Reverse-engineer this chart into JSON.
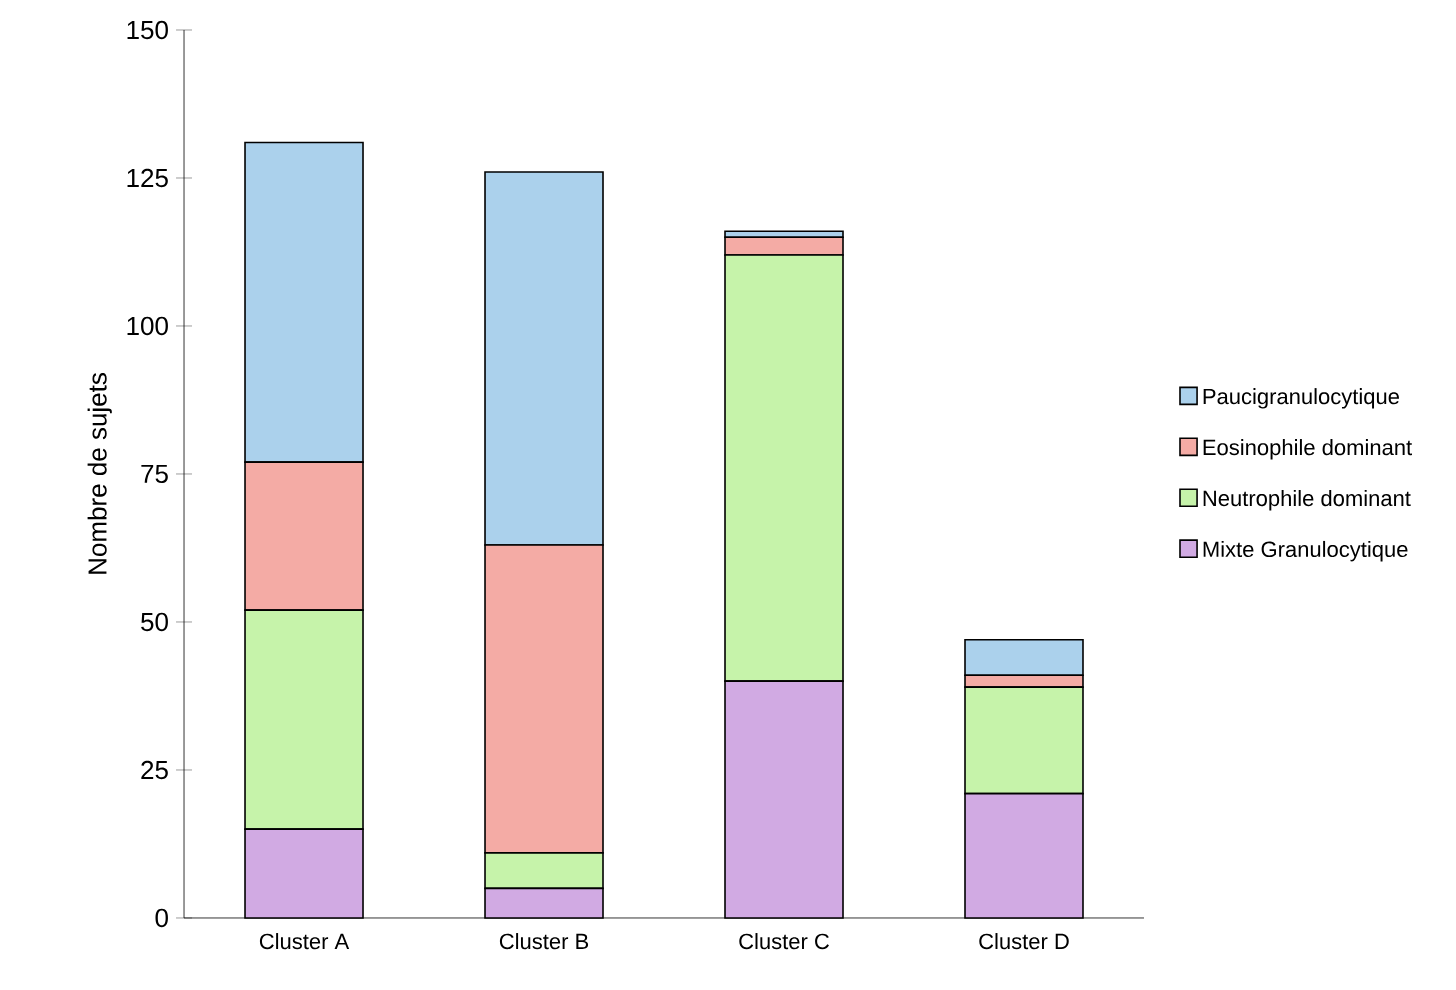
{
  "chart_data": {
    "type": "bar",
    "stacked": true,
    "ylabel": "Nombre de sujets",
    "categories": [
      "Cluster A",
      "Cluster B",
      "Cluster C",
      "Cluster D"
    ],
    "series": [
      {
        "name": "Mixte Granulocytique",
        "color": "#d1aae3",
        "values": [
          15,
          5,
          40,
          21
        ]
      },
      {
        "name": "Neutrophile dominant",
        "color": "#c6f3aa",
        "values": [
          37,
          6,
          72,
          18
        ]
      },
      {
        "name": "Eosinophile dominant",
        "color": "#f4aba5",
        "values": [
          25,
          52,
          3,
          2
        ]
      },
      {
        "name": "Paucigranulocytique",
        "color": "#abd1ec",
        "values": [
          54,
          63,
          1,
          6
        ]
      }
    ],
    "ylim": [
      0,
      150
    ],
    "yticks": [
      0,
      25,
      50,
      75,
      100,
      125,
      150
    ],
    "grid": false,
    "legend": "right"
  }
}
